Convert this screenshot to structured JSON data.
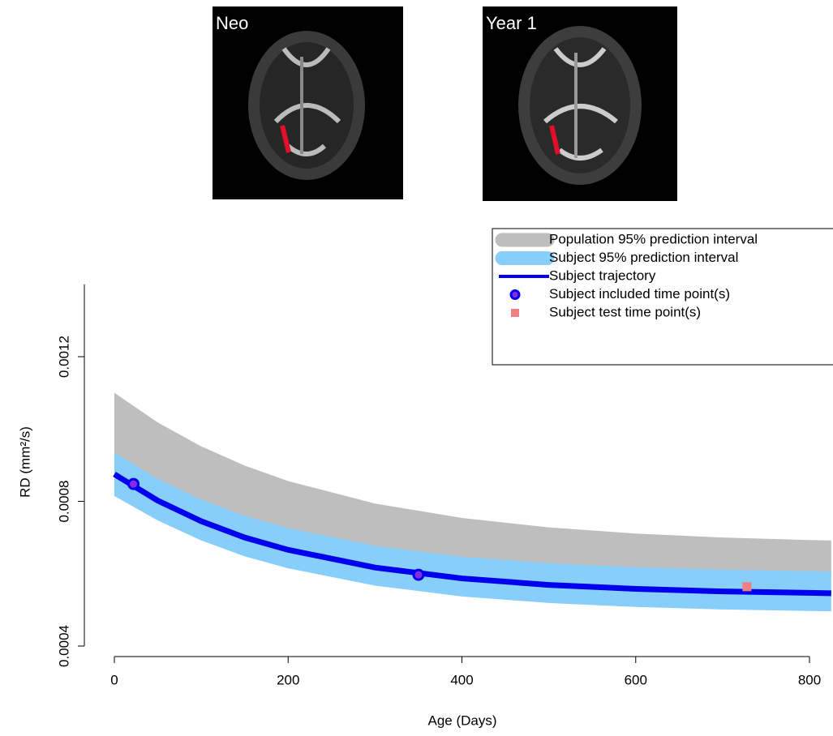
{
  "images": [
    {
      "label": "Neo"
    },
    {
      "label": "Year 1"
    }
  ],
  "chart_data": {
    "type": "line",
    "x_label": "Age (Days)",
    "y_label": "RD (mm²/s)",
    "xlim": [
      -35,
      825
    ],
    "ylim": [
      0.0004,
      0.0014
    ],
    "xticks": [
      0,
      200,
      400,
      600,
      800
    ],
    "yticks": [
      0.0004,
      0.0008,
      0.0012
    ],
    "x": [
      0,
      50,
      100,
      150,
      200,
      300,
      400,
      500,
      600,
      700,
      800,
      825
    ],
    "legend": "top-right",
    "series": [
      {
        "name": "Population 95% prediction interval",
        "kind": "band",
        "color": "#bebebe",
        "upper": [
          0.0011,
          0.001018,
          0.000952,
          0.000899,
          0.000856,
          0.000794,
          0.000754,
          0.000728,
          0.000711,
          0.0007,
          0.000693,
          0.000692
        ],
        "lower": [
          0.000815,
          0.000767,
          0.000729,
          0.000699,
          0.000675,
          0.00064,
          0.000618,
          0.000604,
          0.000595,
          0.00059,
          0.000586,
          0.000585
        ]
      },
      {
        "name": "Subject 95% prediction interval",
        "kind": "band",
        "color": "#87cefa",
        "upper": [
          0.000935,
          0.000862,
          0.000805,
          0.00076,
          0.000726,
          0.000677,
          0.000647,
          0.000629,
          0.000618,
          0.000611,
          0.000607,
          0.000606
        ],
        "lower": [
          0.000815,
          0.000747,
          0.000692,
          0.000648,
          0.000615,
          0.000567,
          0.000537,
          0.000519,
          0.000508,
          0.000501,
          0.000497,
          0.000496
        ]
      },
      {
        "name": "Subject trajectory",
        "kind": "line",
        "color": "#0000ee",
        "values": [
          0.000875,
          0.000802,
          0.000745,
          0.0007,
          0.000666,
          0.000617,
          0.000587,
          0.000569,
          0.000558,
          0.000551,
          0.000547,
          0.000546
        ]
      },
      {
        "name": "Subject included time point(s)",
        "kind": "points",
        "marker": "circle",
        "color": "#0000ee",
        "x": [
          22,
          350
        ],
        "values": [
          0.000848,
          0.000597
        ]
      },
      {
        "name": "Subject test time point(s)",
        "kind": "points",
        "marker": "square",
        "color": "#f08080",
        "x": [
          728
        ],
        "values": [
          0.000564
        ]
      }
    ]
  }
}
